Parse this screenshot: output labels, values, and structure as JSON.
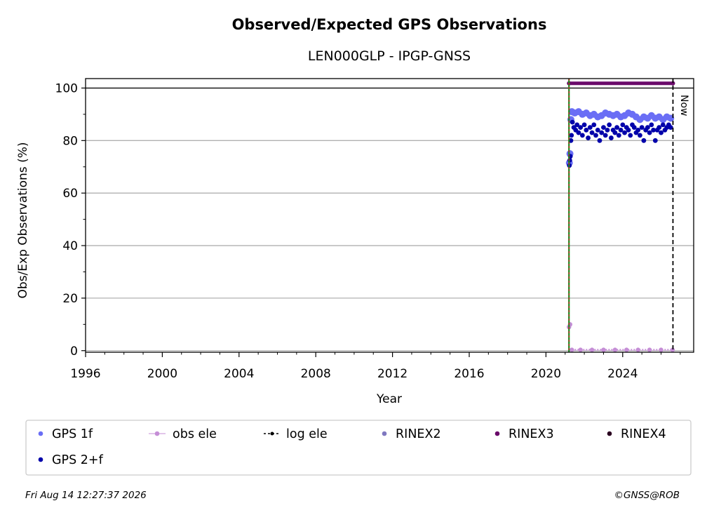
{
  "chart_data": {
    "type": "scatter",
    "title": "Observed/Expected GPS Observations",
    "subtitle": "LEN000GLP - IPGP-GNSS",
    "xlabel": "Year",
    "ylabel": "Obs/Exp Observations (%)",
    "xlim": [
      1996,
      2027.7
    ],
    "ylim": [
      -0.6,
      103.6
    ],
    "x_ticks": [
      1996,
      2000,
      2004,
      2008,
      2012,
      2016,
      2020,
      2024
    ],
    "y_ticks": [
      0,
      20,
      40,
      60,
      80,
      100
    ],
    "grid": "horizontal",
    "reference_line_y": 100,
    "now_line": {
      "x": 2026.62,
      "label": "Now"
    },
    "station_start_x": 2021.2,
    "colors": {
      "gps_1f": "#6a6ef5",
      "gps_2f": "#0000aa",
      "obs_ele": "#c58ed6",
      "log_ele": "#000000",
      "rinex2": "#7f78c0",
      "rinex3": "#6a0a6a",
      "rinex4": "#2a0020",
      "start_line": "#1c8a1c",
      "start_dash": "#cc2222"
    },
    "series": [
      {
        "name": "GPS 1f",
        "points": [
          [
            2021.22,
            71.5
          ],
          [
            2021.25,
            75
          ],
          [
            2021.3,
            88
          ],
          [
            2021.35,
            91
          ],
          [
            2021.5,
            90.5
          ],
          [
            2021.7,
            91
          ],
          [
            2021.9,
            90
          ],
          [
            2022.1,
            90.5
          ],
          [
            2022.3,
            89.5
          ],
          [
            2022.5,
            90
          ],
          [
            2022.7,
            89
          ],
          [
            2022.9,
            89.5
          ],
          [
            2023.1,
            90.5
          ],
          [
            2023.3,
            90
          ],
          [
            2023.5,
            89.5
          ],
          [
            2023.7,
            90
          ],
          [
            2023.9,
            89
          ],
          [
            2024.1,
            89.5
          ],
          [
            2024.3,
            90.5
          ],
          [
            2024.5,
            90
          ],
          [
            2024.7,
            89
          ],
          [
            2024.9,
            88
          ],
          [
            2025.1,
            89
          ],
          [
            2025.3,
            88.5
          ],
          [
            2025.5,
            89.5
          ],
          [
            2025.7,
            88.5
          ],
          [
            2025.9,
            89
          ],
          [
            2026.1,
            88
          ],
          [
            2026.3,
            89
          ],
          [
            2026.5,
            88.5
          ]
        ]
      },
      {
        "name": "GPS 2+f",
        "points": [
          [
            2021.22,
            70.5
          ],
          [
            2021.24,
            72.5
          ],
          [
            2021.27,
            74
          ],
          [
            2021.3,
            80
          ],
          [
            2021.33,
            82
          ],
          [
            2021.38,
            87
          ],
          [
            2021.45,
            85
          ],
          [
            2021.55,
            84
          ],
          [
            2021.62,
            86
          ],
          [
            2021.7,
            83
          ],
          [
            2021.8,
            85
          ],
          [
            2021.9,
            82
          ],
          [
            2022.0,
            86
          ],
          [
            2022.1,
            84
          ],
          [
            2022.2,
            81
          ],
          [
            2022.3,
            85
          ],
          [
            2022.4,
            83
          ],
          [
            2022.5,
            86
          ],
          [
            2022.6,
            82
          ],
          [
            2022.7,
            84
          ],
          [
            2022.8,
            80
          ],
          [
            2022.9,
            83
          ],
          [
            2023.0,
            85
          ],
          [
            2023.1,
            82
          ],
          [
            2023.2,
            84
          ],
          [
            2023.3,
            86
          ],
          [
            2023.4,
            81
          ],
          [
            2023.5,
            84
          ],
          [
            2023.6,
            83
          ],
          [
            2023.7,
            85
          ],
          [
            2023.8,
            82
          ],
          [
            2023.9,
            84
          ],
          [
            2024.0,
            86
          ],
          [
            2024.1,
            83
          ],
          [
            2024.2,
            85
          ],
          [
            2024.3,
            84
          ],
          [
            2024.4,
            82
          ],
          [
            2024.5,
            86
          ],
          [
            2024.6,
            85
          ],
          [
            2024.7,
            83
          ],
          [
            2024.8,
            84
          ],
          [
            2024.9,
            82
          ],
          [
            2025.0,
            85
          ],
          [
            2025.1,
            80
          ],
          [
            2025.2,
            84
          ],
          [
            2025.3,
            85
          ],
          [
            2025.4,
            83
          ],
          [
            2025.5,
            86
          ],
          [
            2025.6,
            84
          ],
          [
            2025.7,
            80
          ],
          [
            2025.8,
            84
          ],
          [
            2025.9,
            85
          ],
          [
            2026.0,
            83
          ],
          [
            2026.1,
            86
          ],
          [
            2026.2,
            84
          ],
          [
            2026.3,
            85
          ],
          [
            2026.4,
            86
          ],
          [
            2026.5,
            85
          ]
        ]
      },
      {
        "name": "obs ele",
        "points": [
          [
            2021.2,
            9
          ],
          [
            2021.26,
            10
          ],
          [
            2021.35,
            0.3
          ],
          [
            2021.8,
            0.3
          ],
          [
            2022.4,
            0.3
          ],
          [
            2023.0,
            0.3
          ],
          [
            2023.6,
            0.3
          ],
          [
            2024.2,
            0.3
          ],
          [
            2024.8,
            0.3
          ],
          [
            2025.4,
            0.3
          ],
          [
            2026.0,
            0.3
          ],
          [
            2026.6,
            0.3
          ]
        ]
      },
      {
        "name": "RINEX3",
        "points": [
          [
            2021.2,
            101.8
          ],
          [
            2026.62,
            101.8
          ]
        ]
      }
    ]
  },
  "legend": {
    "items": [
      {
        "label": "GPS 1f",
        "marker": "dot",
        "color": "#6a6ef5"
      },
      {
        "label": "obs ele",
        "marker": "line-dot",
        "color": "#c58ed6"
      },
      {
        "label": "log ele",
        "marker": "dash-dot",
        "color": "#000000"
      },
      {
        "label": "RINEX2",
        "marker": "dot",
        "color": "#7f78c0"
      },
      {
        "label": "RINEX3",
        "marker": "dot",
        "color": "#6a0a6a"
      },
      {
        "label": "RINEX4",
        "marker": "dot",
        "color": "#2a0020"
      },
      {
        "label": "GPS 2+f",
        "marker": "dot",
        "color": "#0000aa"
      }
    ]
  },
  "footer": {
    "timestamp": "Fri Aug 14 12:27:37 2026",
    "credit": "©GNSS@ROB"
  }
}
